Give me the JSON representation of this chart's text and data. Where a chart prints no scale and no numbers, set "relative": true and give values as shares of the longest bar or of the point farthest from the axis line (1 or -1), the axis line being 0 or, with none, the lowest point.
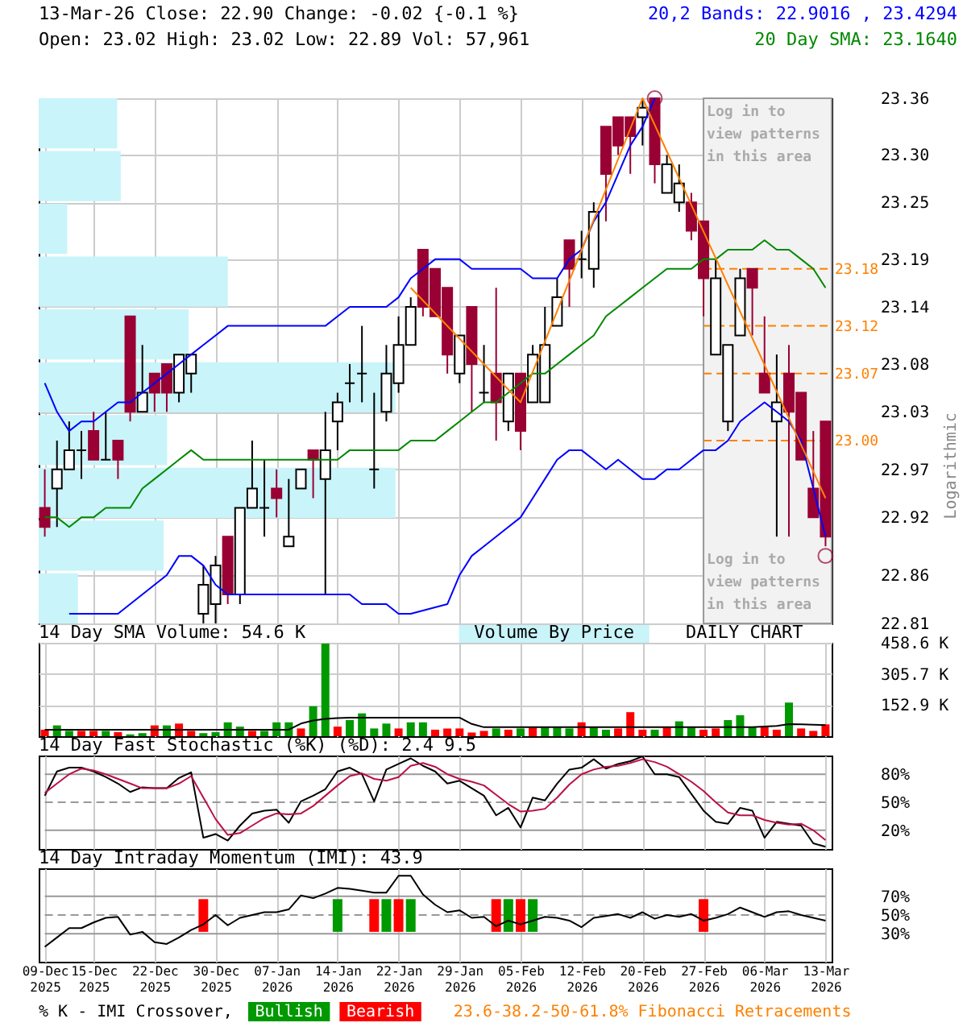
{
  "chart_data": [
    {
      "type": "candlestick",
      "title": "13-Mar-26 Close: 22.90 Change: -0.02 {-0.1 %}",
      "subtitle": "Open: 23.02 High: 23.02 Low: 22.89 Vol: 57,961",
      "ylabel": "Logarithmic",
      "categories": [
        "09-Dec 2025",
        null,
        null,
        null,
        "15-Dec 2025",
        null,
        null,
        null,
        null,
        "22-Dec 2025",
        null,
        null,
        null,
        null,
        "30-Dec 2025",
        null,
        null,
        null,
        null,
        "07-Jan 2026",
        null,
        null,
        null,
        null,
        "14-Jan 2026",
        null,
        null,
        null,
        null,
        "22-Jan 2026",
        null,
        null,
        null,
        null,
        "29-Jan 2026",
        null,
        null,
        null,
        null,
        "05-Feb 2026",
        null,
        null,
        null,
        null,
        "12-Feb 2026",
        null,
        null,
        null,
        null,
        "20-Feb 2026",
        null,
        null,
        null,
        null,
        "27-Feb 2026",
        null,
        null,
        null,
        null,
        "06-Mar 2026",
        null,
        null,
        null,
        null,
        "13-Mar 2026"
      ],
      "ohlc": [
        [
          22.93,
          22.97,
          22.9,
          22.91
        ],
        [
          22.95,
          23.0,
          22.91,
          22.97
        ],
        [
          22.97,
          23.02,
          22.97,
          22.99
        ],
        [
          22.99,
          23.01,
          22.96,
          22.99
        ],
        [
          23.01,
          23.03,
          22.98,
          22.98
        ],
        [
          22.98,
          23.03,
          22.98,
          22.98
        ],
        [
          23.0,
          23.0,
          22.96,
          22.98
        ],
        [
          23.13,
          23.13,
          23.02,
          23.03
        ],
        [
          23.03,
          23.1,
          23.03,
          23.05
        ],
        [
          23.07,
          23.07,
          23.03,
          23.05
        ],
        [
          23.08,
          23.08,
          23.03,
          23.05
        ],
        [
          23.05,
          23.09,
          23.04,
          23.09
        ],
        [
          23.07,
          23.09,
          23.05,
          23.09
        ],
        [
          22.82,
          22.87,
          22.81,
          22.85
        ],
        [
          22.83,
          22.88,
          22.81,
          22.87
        ],
        [
          22.9,
          22.9,
          22.83,
          22.84
        ],
        [
          22.84,
          22.93,
          22.83,
          22.93
        ],
        [
          22.93,
          23.0,
          22.93,
          22.95
        ],
        [
          22.93,
          22.98,
          22.9,
          22.93
        ],
        [
          22.95,
          22.97,
          22.92,
          22.94
        ],
        [
          22.89,
          22.96,
          22.89,
          22.9
        ],
        [
          22.95,
          22.97,
          22.95,
          22.97
        ],
        [
          22.99,
          22.99,
          22.94,
          22.98
        ],
        [
          22.96,
          23.03,
          22.84,
          22.99
        ],
        [
          23.02,
          23.05,
          22.99,
          23.04
        ],
        [
          23.06,
          23.08,
          23.04,
          23.06
        ],
        [
          23.07,
          23.12,
          23.04,
          23.07
        ],
        [
          22.97,
          23.05,
          22.95,
          22.97
        ],
        [
          23.03,
          23.1,
          23.02,
          23.07
        ],
        [
          23.06,
          23.13,
          23.05,
          23.1
        ],
        [
          23.1,
          23.15,
          23.1,
          23.14
        ],
        [
          23.2,
          23.2,
          23.13,
          23.14
        ],
        [
          23.18,
          23.18,
          23.13,
          23.13
        ],
        [
          23.16,
          23.16,
          23.07,
          23.09
        ],
        [
          23.07,
          23.11,
          23.06,
          23.11
        ],
        [
          23.14,
          23.14,
          23.03,
          23.08
        ],
        [
          23.05,
          23.1,
          23.04,
          23.05
        ],
        [
          23.07,
          23.16,
          23.0,
          23.04
        ],
        [
          23.02,
          23.07,
          23.01,
          23.07
        ],
        [
          23.07,
          23.07,
          22.99,
          23.01
        ],
        [
          23.04,
          23.1,
          23.04,
          23.09
        ],
        [
          23.04,
          23.14,
          23.04,
          23.1
        ],
        [
          23.12,
          23.17,
          23.12,
          23.15
        ],
        [
          23.21,
          23.21,
          23.14,
          23.18
        ],
        [
          23.19,
          23.22,
          23.17,
          23.19
        ],
        [
          23.18,
          23.25,
          23.16,
          23.24
        ],
        [
          23.33,
          23.33,
          23.23,
          23.28
        ],
        [
          23.34,
          23.34,
          23.3,
          23.31
        ],
        [
          23.34,
          23.34,
          23.28,
          23.32
        ],
        [
          23.34,
          23.36,
          23.31,
          23.35
        ],
        [
          23.36,
          23.36,
          23.27,
          23.29
        ],
        [
          23.26,
          23.3,
          23.26,
          23.29
        ],
        [
          23.25,
          23.29,
          23.24,
          23.27
        ],
        [
          23.25,
          23.26,
          23.21,
          23.22
        ],
        [
          23.23,
          23.23,
          23.13,
          23.17
        ],
        [
          23.09,
          23.19,
          23.09,
          23.17
        ],
        [
          23.02,
          23.1,
          23.01,
          23.1
        ],
        [
          23.11,
          23.18,
          23.11,
          23.17
        ],
        [
          23.18,
          23.18,
          23.11,
          23.16
        ],
        [
          23.07,
          23.13,
          23.05,
          23.05
        ],
        [
          23.02,
          23.09,
          22.9,
          23.04
        ],
        [
          23.07,
          23.1,
          22.9,
          23.03
        ],
        [
          23.05,
          23.05,
          22.98,
          22.98
        ],
        [
          22.95,
          23.01,
          22.92,
          22.92
        ],
        [
          23.02,
          23.02,
          22.89,
          22.9
        ]
      ],
      "series": [
        {
          "type": "line",
          "name": "20,2 Bands: 22.9016 , 23.4294",
          "color": "#0000ff",
          "values": [
            23.06,
            23.03,
            23.01,
            23.02,
            23.02,
            23.03,
            23.04,
            23.04,
            23.05,
            23.06,
            23.07,
            23.08,
            23.09,
            23.1,
            23.11,
            23.12,
            23.12,
            23.12,
            23.12,
            23.12,
            23.12,
            23.12,
            23.12,
            23.12,
            23.13,
            23.14,
            23.14,
            23.14,
            23.14,
            23.15,
            23.17,
            23.18,
            23.19,
            23.19,
            23.19,
            23.18,
            23.18,
            23.18,
            23.18,
            23.18,
            23.17,
            23.17,
            23.17,
            23.19,
            23.2,
            23.23,
            23.25,
            23.28,
            23.31,
            23.33,
            23.36,
            null,
            null,
            null,
            null,
            null,
            null,
            null,
            null,
            null,
            null,
            null,
            null,
            null,
            null
          ]
        },
        {
          "type": "line",
          "color": "#0000ff",
          "values": [
            null,
            null,
            22.82,
            22.82,
            22.82,
            22.82,
            22.82,
            22.83,
            22.84,
            22.85,
            22.86,
            22.88,
            22.88,
            22.87,
            22.85,
            22.84,
            22.84,
            22.84,
            22.84,
            22.84,
            22.84,
            22.84,
            22.84,
            22.84,
            22.84,
            22.84,
            22.83,
            22.83,
            22.83,
            22.82,
            22.82,
            null,
            null,
            22.83,
            22.86,
            22.88,
            22.89,
            22.9,
            22.91,
            22.92,
            22.94,
            22.96,
            22.98,
            22.99,
            22.99,
            22.98,
            22.97,
            22.98,
            22.97,
            22.96,
            22.96,
            22.97,
            22.97,
            22.98,
            22.99,
            22.99,
            23.0,
            23.02,
            23.03,
            23.04,
            23.03,
            23.02,
            23.0,
            22.95,
            22.9
          ]
        },
        {
          "type": "line",
          "name": "20 Day SMA: 23.1640",
          "color": "#008800",
          "values": [
            22.92,
            22.92,
            22.91,
            22.92,
            22.92,
            22.93,
            22.93,
            22.93,
            22.95,
            22.96,
            22.97,
            22.98,
            22.99,
            22.98,
            22.98,
            22.98,
            22.98,
            22.98,
            22.98,
            22.98,
            22.98,
            22.98,
            22.98,
            22.98,
            22.98,
            22.99,
            22.99,
            22.99,
            22.99,
            22.99,
            23.0,
            23.0,
            23.0,
            23.01,
            23.02,
            23.03,
            23.04,
            23.04,
            23.05,
            23.06,
            23.07,
            23.07,
            23.08,
            23.09,
            23.1,
            23.11,
            23.13,
            23.14,
            23.15,
            23.16,
            23.17,
            23.18,
            23.18,
            23.18,
            23.19,
            23.19,
            23.2,
            23.2,
            23.2,
            23.21,
            23.2,
            23.2,
            23.19,
            23.18,
            23.16
          ]
        },
        {
          "type": "line",
          "color": "#ff8000",
          "values": [
            null,
            null,
            null,
            null,
            null,
            null,
            null,
            null,
            null,
            null,
            null,
            null,
            null,
            null,
            null,
            null,
            null,
            null,
            null,
            null,
            null,
            null,
            null,
            null,
            null,
            null,
            null,
            null,
            null,
            null,
            23.16,
            null,
            null,
            null,
            null,
            null,
            null,
            null,
            null,
            23.04,
            null,
            null,
            null,
            null,
            null,
            null,
            null,
            null,
            null,
            23.36,
            null,
            null,
            null,
            null,
            null,
            null,
            null,
            null,
            null,
            null,
            null,
            null,
            null,
            null,
            22.94
          ]
        },
        {
          "type": "scatter",
          "marker": "circle",
          "color": "#990033",
          "values": [
            null,
            null,
            null,
            null,
            null,
            null,
            null,
            null,
            null,
            null,
            null,
            null,
            null,
            null,
            null,
            null,
            null,
            null,
            null,
            null,
            null,
            null,
            null,
            null,
            null,
            null,
            null,
            null,
            null,
            null,
            null,
            null,
            null,
            null,
            null,
            null,
            null,
            null,
            null,
            null,
            null,
            null,
            null,
            null,
            null,
            null,
            null,
            null,
            null,
            null,
            23.36,
            null,
            null,
            null,
            null,
            null,
            null,
            null,
            null,
            null,
            null,
            null,
            null,
            null,
            22.88
          ]
        }
      ],
      "ylim": [
        22.81,
        23.36
      ],
      "yticks": [
        22.81,
        22.86,
        22.92,
        22.97,
        23.03,
        23.08,
        23.14,
        23.19,
        23.25,
        {
          "value": 23.3,
          "label": "23.30"
        },
        23.36
      ],
      "log": true,
      "grid": true,
      "legend": "top right",
      "tick_labels": "y",
      "ref_lines": [
        {
          "axis": "y",
          "value": 23.18,
          "label": "23.18",
          "color": "#ff8000",
          "line_style": "dashed"
        },
        {
          "axis": "y",
          "value": 23.12,
          "label": "23.12",
          "color": "#ff8000",
          "line_style": "dashed"
        },
        {
          "axis": "y",
          "value": 23.07,
          "label": "23.07",
          "color": "#ff8000",
          "line_style": "dashed"
        },
        {
          "axis": "y",
          "value": 23.0,
          "label": "23.00",
          "color": "#ff8000",
          "line_style": "dashed"
        }
      ],
      "bands": [
        {
          "axis": "x",
          "from": "27-Feb 2026",
          "to": "13-Mar 2026",
          "label": "Log in to view patterns in this area",
          "color": "#f2f2f2"
        }
      ],
      "annotations": [
        "Log in to view patterns in this area",
        "23.6-38.2-50-61.8% Fibonacci Retracements"
      ]
    },
    {
      "type": "bar",
      "orientation": "horizontal",
      "relative": true,
      "categories": [
        null,
        null,
        null,
        null,
        null,
        null,
        null,
        null,
        null,
        null
      ],
      "series": [
        {
          "name": "Volume By Price",
          "color": "#c8f4fa",
          "values": [
            0.22,
            0.23,
            0.08,
            0.53,
            0.42,
            1.0,
            0.36,
            1.0,
            0.35,
            0.11
          ]
        }
      ]
    },
    {
      "type": "bar",
      "title": "14 Day SMA Volume: 54.6 K",
      "annotations": [
        "DAILY CHART"
      ],
      "categories": [
        "09-Dec 2025",
        null,
        null,
        null,
        "15-Dec 2025",
        null,
        null,
        null,
        null,
        "22-Dec 2025",
        null,
        null,
        null,
        null,
        "30-Dec 2025",
        null,
        null,
        null,
        null,
        "07-Jan 2026",
        null,
        null,
        null,
        null,
        "14-Jan 2026",
        null,
        null,
        null,
        null,
        "22-Jan 2026",
        null,
        null,
        null,
        null,
        "29-Jan 2026",
        null,
        null,
        null,
        null,
        "05-Feb 2026",
        null,
        null,
        null,
        null,
        "12-Feb 2026",
        null,
        null,
        null,
        null,
        "20-Feb 2026",
        null,
        null,
        null,
        null,
        "27-Feb 2026",
        null,
        null,
        null,
        null,
        "06-Mar 2026",
        null,
        null,
        null,
        null,
        "13-Mar 2026"
      ],
      "series": [
        {
          "type": "bar",
          "values": [
            32,
            53,
            26,
            26,
            26,
            26,
            20,
            9,
            15,
            53,
            53,
            62,
            26,
            15,
            20,
            68,
            47,
            26,
            26,
            68,
            68,
            38,
            147,
            455,
            47,
            79,
            112,
            38,
            62,
            38,
            68,
            68,
            32,
            38,
            38,
            18,
            26,
            38,
            32,
            38,
            47,
            47,
            47,
            38,
            68,
            47,
            32,
            38,
            118,
            32,
            32,
            47,
            73,
            47,
            32,
            38,
            79,
            103,
            47,
            47,
            32,
            165,
            38,
            26,
            58
          ],
          "colors": [
            "#ff0000",
            "#009900",
            "#009900",
            "#ff0000",
            "#ff0000",
            "#009900",
            "#ff0000",
            "#009900",
            "#009900",
            "#ff0000",
            "#009900",
            "#ff0000",
            "#ff0000",
            "#009900",
            "#009900",
            "#009900",
            "#009900",
            "#ff0000",
            "#009900",
            "#009900",
            "#009900",
            "#ff0000",
            "#009900",
            "#009900",
            "#ff0000",
            "#009900",
            "#009900",
            "#009900",
            "#009900",
            "#ff0000",
            "#009900",
            "#009900",
            "#ff0000",
            "#ff0000",
            "#ff0000",
            "#ff0000",
            "#ff0000",
            "#009900",
            "#ff0000",
            "#009900",
            "#ff0000",
            "#009900",
            "#009900",
            "#009900",
            "#ff0000",
            "#009900",
            "#009900",
            "#ff0000",
            "#ff0000",
            "#ff0000",
            "#009900",
            "#ff0000",
            "#009900",
            "#009900",
            "#ff0000",
            "#ff0000",
            "#009900",
            "#009900",
            "#009900",
            "#ff0000",
            "#ff0000",
            "#009900",
            "#ff0000",
            "#ff0000",
            "#ff0000"
          ]
        },
        {
          "type": "line",
          "color": "#000000",
          "values": [
            32,
            32,
            32,
            32,
            32,
            32,
            32,
            32,
            32,
            32,
            32,
            32,
            32,
            32,
            32,
            32,
            32,
            32,
            32,
            32,
            32,
            62,
            77,
            85,
            89,
            91,
            91,
            91,
            91,
            91,
            91,
            91,
            91,
            91,
            91,
            60,
            44,
            44,
            44,
            44,
            44,
            44,
            44,
            44,
            44,
            44,
            44,
            44,
            44,
            44,
            44,
            44,
            44,
            44,
            44,
            44,
            44,
            44,
            44,
            47,
            50,
            59,
            58,
            56,
            54.6
          ]
        }
      ],
      "ylim": [
        0,
        458.6
      ],
      "yticks": [
        {
          "value": 152.9,
          "label": "152.9 K"
        },
        {
          "value": 305.7,
          "label": "305.7 K"
        },
        {
          "value": 458.6,
          "label": "458.6 K"
        }
      ],
      "grid": true,
      "tick_labels": "y"
    },
    {
      "type": "line",
      "title": "14 Day Fast Stochastic (%K) (%D): 2.4 9.5",
      "categories": [
        "09-Dec 2025",
        null,
        null,
        null,
        "15-Dec 2025",
        null,
        null,
        null,
        null,
        "22-Dec 2025",
        null,
        null,
        null,
        null,
        "30-Dec 2025",
        null,
        null,
        null,
        null,
        "07-Jan 2026",
        null,
        null,
        null,
        null,
        "14-Jan 2026",
        null,
        null,
        null,
        null,
        "22-Jan 2026",
        null,
        null,
        null,
        null,
        "29-Jan 2026",
        null,
        null,
        null,
        null,
        "05-Feb 2026",
        null,
        null,
        null,
        null,
        "12-Feb 2026",
        null,
        null,
        null,
        null,
        "20-Feb 2026",
        null,
        null,
        null,
        null,
        "27-Feb 2026",
        null,
        null,
        null,
        null,
        "06-Mar 2026",
        null,
        null,
        null,
        null,
        "13-Mar 2026"
      ],
      "series": [
        {
          "type": "line",
          "color": "#000000",
          "values": [
            57,
            83,
            87,
            87,
            83,
            77,
            70,
            61,
            66,
            65,
            65,
            76,
            82,
            12,
            16,
            9,
            25,
            38,
            41,
            42,
            28,
            51,
            57,
            64,
            83,
            87,
            80,
            51,
            85,
            91,
            97,
            89,
            83,
            70,
            73,
            65,
            57,
            36,
            44,
            23,
            55,
            52,
            70,
            85,
            87,
            96,
            86,
            91,
            94,
            99,
            80,
            80,
            77,
            59,
            41,
            29,
            27,
            44,
            41,
            12,
            29,
            27,
            25,
            6,
            2.4
          ]
        },
        {
          "type": "line",
          "color": "#bb1144",
          "values": [
            60,
            70,
            80,
            86,
            84,
            80,
            75,
            70,
            65,
            65,
            65,
            70,
            78,
            55,
            32,
            15,
            17,
            25,
            33,
            38,
            37,
            38,
            46,
            57,
            68,
            78,
            81,
            75,
            73,
            77,
            89,
            92,
            88,
            80,
            75,
            72,
            68,
            58,
            48,
            40,
            41,
            43,
            55,
            69,
            80,
            85,
            88,
            89,
            92,
            96,
            93,
            88,
            80,
            72,
            62,
            50,
            39,
            36,
            36,
            31,
            28,
            26,
            27,
            20,
            9.5
          ]
        }
      ],
      "ylim": [
        0,
        100
      ],
      "yticks": [
        {
          "value": 20,
          "label": "20%"
        },
        {
          "value": 50,
          "label": "50%"
        },
        {
          "value": 80,
          "label": "80%"
        }
      ],
      "grid": "x",
      "tick_labels": "y",
      "ref_lines": [
        {
          "axis": "y",
          "value": 20,
          "color": "#999999"
        },
        {
          "axis": "y",
          "value": 50,
          "color": "#999999",
          "line_style": "dashed"
        },
        {
          "axis": "y",
          "value": 80,
          "color": "#999999"
        }
      ]
    },
    {
      "type": "line",
      "title": "14 Day Intraday Momentum (IMI): 43.9",
      "legend_title": "% K - IMI Crossover,",
      "legend": "bottom",
      "categories": [
        "09-Dec 2025",
        null,
        null,
        null,
        "15-Dec 2025",
        null,
        null,
        null,
        null,
        "22-Dec 2025",
        null,
        null,
        null,
        null,
        "30-Dec 2025",
        null,
        null,
        null,
        null,
        "07-Jan 2026",
        null,
        null,
        null,
        null,
        "14-Jan 2026",
        null,
        null,
        null,
        null,
        "22-Jan 2026",
        null,
        null,
        null,
        null,
        "29-Jan 2026",
        null,
        null,
        null,
        null,
        "05-Feb 2026",
        null,
        null,
        null,
        null,
        "12-Feb 2026",
        null,
        null,
        null,
        null,
        "20-Feb 2026",
        null,
        null,
        null,
        null,
        "27-Feb 2026",
        null,
        null,
        null,
        null,
        "06-Mar 2026",
        null,
        null,
        null,
        null,
        "13-Mar 2026"
      ],
      "series": [
        {
          "type": "bar",
          "name": "Bullish",
          "color": "#009900",
          "values": [
            null,
            null,
            null,
            null,
            null,
            null,
            null,
            null,
            null,
            null,
            null,
            null,
            null,
            null,
            null,
            null,
            null,
            null,
            null,
            null,
            null,
            null,
            null,
            null,
            35,
            null,
            null,
            null,
            35,
            null,
            35,
            null,
            null,
            null,
            null,
            null,
            null,
            null,
            35,
            null,
            35,
            null,
            null,
            null,
            null,
            null,
            null,
            null,
            null,
            null,
            null,
            null,
            null,
            null,
            null,
            null,
            null,
            null,
            null,
            null,
            null,
            null,
            null,
            null,
            null
          ],
          "base": [
            null,
            null,
            null,
            null,
            null,
            null,
            null,
            null,
            null,
            null,
            null,
            null,
            null,
            null,
            null,
            null,
            null,
            null,
            null,
            null,
            null,
            null,
            null,
            null,
            32,
            null,
            null,
            null,
            32,
            null,
            32,
            null,
            null,
            null,
            null,
            null,
            null,
            null,
            32,
            null,
            32,
            null,
            null,
            null,
            null,
            null,
            null,
            null,
            null,
            null,
            null,
            null,
            null,
            null,
            null,
            null,
            null,
            null,
            null,
            null,
            null,
            null,
            null,
            null,
            null
          ]
        },
        {
          "type": "bar",
          "name": "Bearish",
          "color": "#ff0000",
          "values": [
            null,
            null,
            null,
            null,
            null,
            null,
            null,
            null,
            null,
            null,
            null,
            null,
            null,
            35,
            null,
            null,
            null,
            null,
            null,
            null,
            null,
            null,
            null,
            null,
            null,
            null,
            null,
            35,
            null,
            35,
            null,
            null,
            null,
            null,
            null,
            null,
            null,
            35,
            null,
            35,
            null,
            null,
            null,
            null,
            null,
            null,
            null,
            null,
            null,
            null,
            null,
            null,
            null,
            null,
            35,
            null,
            null,
            null,
            null,
            null,
            null,
            null,
            null,
            null,
            null
          ],
          "base": [
            null,
            null,
            null,
            null,
            null,
            null,
            null,
            null,
            null,
            null,
            null,
            null,
            null,
            32,
            null,
            null,
            null,
            null,
            null,
            null,
            null,
            null,
            null,
            null,
            null,
            null,
            null,
            32,
            null,
            32,
            null,
            null,
            null,
            null,
            null,
            null,
            null,
            32,
            null,
            32,
            null,
            null,
            null,
            null,
            null,
            null,
            null,
            null,
            null,
            null,
            null,
            null,
            null,
            null,
            32,
            null,
            null,
            null,
            null,
            null,
            null,
            null,
            null,
            null,
            null
          ]
        },
        {
          "type": "line",
          "color": "#000000",
          "values": [
            16,
            26,
            36,
            36,
            42,
            47,
            48,
            29,
            32,
            21,
            19,
            26,
            34,
            40,
            50,
            39,
            47,
            50,
            53,
            53,
            56,
            71,
            68,
            73,
            79,
            78,
            76,
            74,
            74,
            92,
            92,
            72,
            61,
            53,
            55,
            47,
            48,
            38,
            44,
            40,
            44,
            48,
            47,
            44,
            37,
            47,
            49,
            51,
            47,
            53,
            46,
            50,
            48,
            51,
            44,
            47,
            51,
            58,
            53,
            48,
            53,
            54,
            50,
            47,
            43.9
          ]
        }
      ],
      "ylim": [
        0,
        100
      ],
      "yticks": [
        {
          "value": 30,
          "label": "30%"
        },
        {
          "value": 50,
          "label": "50%"
        },
        {
          "value": 70,
          "label": "70%"
        }
      ],
      "grid": "x",
      "ref_lines": [
        {
          "axis": "y",
          "value": 30,
          "color": "#999999"
        },
        {
          "axis": "y",
          "value": 50,
          "color": "#999999",
          "line_style": "dashed"
        },
        {
          "axis": "y",
          "value": 70,
          "color": "#999999"
        }
      ]
    }
  ]
}
